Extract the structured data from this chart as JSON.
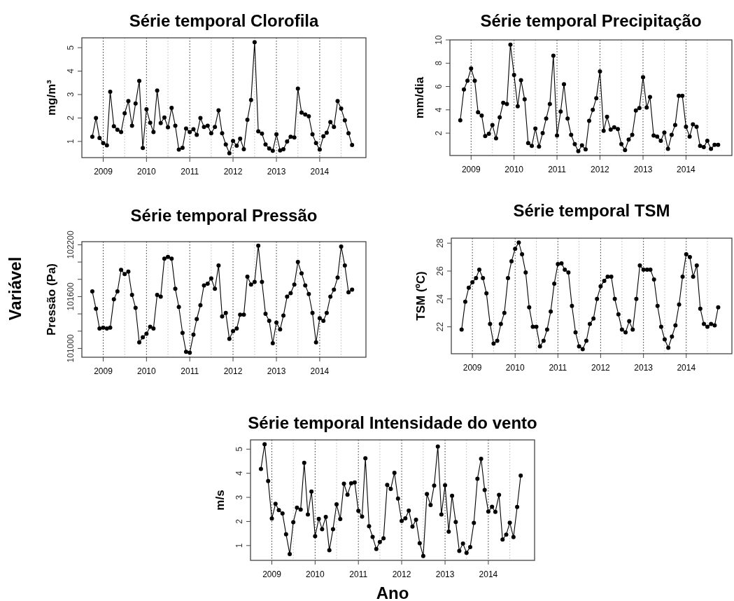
{
  "chart_data": [
    {
      "type": "line",
      "title": "Série temporal Clorofila",
      "ylabel": "mg/m³",
      "color": "#000000",
      "marker": "circle",
      "line_style": "solid",
      "x": [
        "2008-10",
        "2008-11",
        "2008-12",
        "2009-01",
        "2009-02",
        "2009-03",
        "2009-04",
        "2009-05",
        "2009-06",
        "2009-07",
        "2009-08",
        "2009-09",
        "2009-10",
        "2009-11",
        "2009-12",
        "2010-01",
        "2010-02",
        "2010-03",
        "2010-04",
        "2010-05",
        "2010-06",
        "2010-07",
        "2010-08",
        "2010-09",
        "2010-10",
        "2010-11",
        "2010-12",
        "2011-01",
        "2011-02",
        "2011-03",
        "2011-04",
        "2011-05",
        "2011-06",
        "2011-07",
        "2011-08",
        "2011-09",
        "2011-10",
        "2011-11",
        "2011-12",
        "2012-01",
        "2012-02",
        "2012-03",
        "2012-04",
        "2012-05",
        "2012-06",
        "2012-07",
        "2012-08",
        "2012-09",
        "2012-10",
        "2012-11",
        "2012-12",
        "2013-01",
        "2013-02",
        "2013-03",
        "2013-04",
        "2013-05",
        "2013-06",
        "2013-07",
        "2013-08",
        "2013-09",
        "2013-10",
        "2013-11",
        "2013-12",
        "2014-01",
        "2014-02",
        "2014-03",
        "2014-04",
        "2014-05",
        "2014-06",
        "2014-07",
        "2014-08",
        "2014-09",
        "2014-10"
      ],
      "values": [
        1.2,
        2.0,
        1.15,
        0.93,
        0.83,
        3.12,
        1.65,
        1.5,
        1.4,
        2.2,
        2.72,
        1.67,
        2.62,
        3.58,
        0.72,
        2.37,
        1.8,
        1.4,
        3.17,
        1.78,
        2.02,
        1.6,
        2.43,
        1.67,
        0.65,
        0.73,
        1.55,
        1.4,
        1.52,
        1.28,
        2.0,
        1.62,
        1.67,
        1.35,
        1.62,
        2.33,
        1.35,
        0.87,
        0.5,
        1.02,
        0.82,
        1.12,
        0.67,
        1.92,
        2.77,
        5.23,
        1.43,
        1.33,
        0.87,
        0.7,
        0.6,
        1.3,
        0.62,
        0.67,
        1.0,
        1.2,
        1.17,
        3.25,
        2.23,
        2.15,
        2.07,
        1.3,
        0.93,
        0.65,
        1.22,
        1.37,
        1.83,
        1.62,
        2.72,
        2.4,
        1.9,
        1.35,
        0.85
      ],
      "xlim": [
        "2008-07-05",
        "2015-01-26"
      ],
      "xticks": [
        {
          "value": "2009",
          "label": "2009"
        },
        {
          "value": "2010",
          "label": "2010"
        },
        {
          "value": "2011",
          "label": "2011"
        },
        {
          "value": "2012",
          "label": "2012"
        },
        {
          "value": "2013",
          "label": "2013"
        },
        {
          "value": "2014",
          "label": "2014"
        }
      ],
      "ylim": [
        0.31,
        5.42
      ],
      "yticks": [
        1,
        2,
        3,
        4,
        5
      ],
      "ref_lines": [
        {
          "axis": "x",
          "value": "2009-01",
          "color": "#333333",
          "line_style": "dotted"
        },
        {
          "axis": "x",
          "value": "2010-01",
          "color": "#333333",
          "line_style": "dotted"
        },
        {
          "axis": "x",
          "value": "2011-01",
          "color": "#333333",
          "line_style": "dotted"
        },
        {
          "axis": "x",
          "value": "2012-01",
          "color": "#333333",
          "line_style": "dotted"
        },
        {
          "axis": "x",
          "value": "2013-01",
          "color": "#333333",
          "line_style": "dotted"
        },
        {
          "axis": "x",
          "value": "2014-01",
          "color": "#333333",
          "line_style": "dotted"
        },
        {
          "axis": "x",
          "value": "2009-07",
          "color": "#bbbbbb",
          "line_style": "dotted"
        },
        {
          "axis": "x",
          "value": "2010-07",
          "color": "#bbbbbb",
          "line_style": "dotted"
        },
        {
          "axis": "x",
          "value": "2011-07",
          "color": "#bbbbbb",
          "line_style": "dotted"
        },
        {
          "axis": "x",
          "value": "2012-07",
          "color": "#bbbbbb",
          "line_style": "dotted"
        },
        {
          "axis": "x",
          "value": "2013-07",
          "color": "#bbbbbb",
          "line_style": "dotted"
        },
        {
          "axis": "x",
          "value": "2014-07",
          "color": "#bbbbbb",
          "line_style": "dotted"
        }
      ]
    },
    {
      "type": "line",
      "title": "Série temporal Precipitação",
      "ylabel": "mm/dia",
      "color": "#000000",
      "marker": "circle",
      "line_style": "solid",
      "x": [
        "2008-10",
        "2008-11",
        "2008-12",
        "2009-01",
        "2009-02",
        "2009-03",
        "2009-04",
        "2009-05",
        "2009-06",
        "2009-07",
        "2009-08",
        "2009-09",
        "2009-10",
        "2009-11",
        "2009-12",
        "2010-01",
        "2010-02",
        "2010-03",
        "2010-04",
        "2010-05",
        "2010-06",
        "2010-07",
        "2010-08",
        "2010-09",
        "2010-10",
        "2010-11",
        "2010-12",
        "2011-01",
        "2011-02",
        "2011-03",
        "2011-04",
        "2011-05",
        "2011-06",
        "2011-07",
        "2011-08",
        "2011-09",
        "2011-10",
        "2011-11",
        "2011-12",
        "2012-01",
        "2012-02",
        "2012-03",
        "2012-04",
        "2012-05",
        "2012-06",
        "2012-07",
        "2012-08",
        "2012-09",
        "2012-10",
        "2012-11",
        "2012-12",
        "2013-01",
        "2013-02",
        "2013-03",
        "2013-04",
        "2013-05",
        "2013-06",
        "2013-07",
        "2013-08",
        "2013-09",
        "2013-10",
        "2013-11",
        "2013-12",
        "2014-01",
        "2014-02",
        "2014-03",
        "2014-04",
        "2014-05",
        "2014-06",
        "2014-07",
        "2014-08",
        "2014-09",
        "2014-10"
      ],
      "values": [
        3.1,
        5.75,
        6.5,
        7.55,
        6.5,
        3.8,
        3.5,
        1.75,
        1.95,
        2.7,
        1.55,
        3.35,
        4.6,
        4.5,
        9.6,
        7.0,
        4.3,
        6.55,
        4.9,
        1.15,
        0.9,
        2.4,
        0.85,
        2.0,
        3.25,
        4.5,
        8.65,
        1.8,
        3.85,
        6.2,
        3.25,
        1.85,
        1.05,
        0.45,
        0.95,
        0.6,
        3.05,
        4.0,
        5.0,
        7.3,
        2.2,
        3.4,
        2.3,
        2.5,
        2.35,
        1.05,
        0.55,
        1.45,
        1.85,
        3.95,
        4.15,
        6.8,
        4.2,
        5.1,
        1.8,
        1.7,
        1.35,
        2.05,
        0.65,
        1.85,
        2.7,
        5.2,
        5.2,
        2.55,
        1.7,
        2.75,
        2.55,
        0.9,
        0.8,
        1.35,
        0.65,
        1.0,
        1.0
      ],
      "xlim": [
        "2008-07-05",
        "2015-01-26"
      ],
      "xticks": [
        {
          "value": "2009",
          "label": "2009"
        },
        {
          "value": "2010",
          "label": "2010"
        },
        {
          "value": "2011",
          "label": "2011"
        },
        {
          "value": "2012",
          "label": "2012"
        },
        {
          "value": "2013",
          "label": "2013"
        },
        {
          "value": "2014",
          "label": "2014"
        }
      ],
      "ylim": [
        0.08,
        10.0
      ],
      "yticks": [
        2,
        4,
        6,
        8,
        10
      ],
      "ref_lines": [
        {
          "axis": "x",
          "value": "2009-01",
          "color": "#333333",
          "line_style": "dotted"
        },
        {
          "axis": "x",
          "value": "2010-01",
          "color": "#333333",
          "line_style": "dotted"
        },
        {
          "axis": "x",
          "value": "2011-01",
          "color": "#333333",
          "line_style": "dotted"
        },
        {
          "axis": "x",
          "value": "2012-01",
          "color": "#333333",
          "line_style": "dotted"
        },
        {
          "axis": "x",
          "value": "2013-01",
          "color": "#333333",
          "line_style": "dotted"
        },
        {
          "axis": "x",
          "value": "2014-01",
          "color": "#333333",
          "line_style": "dotted"
        },
        {
          "axis": "x",
          "value": "2009-07",
          "color": "#bbbbbb",
          "line_style": "dotted"
        },
        {
          "axis": "x",
          "value": "2010-07",
          "color": "#bbbbbb",
          "line_style": "dotted"
        },
        {
          "axis": "x",
          "value": "2011-07",
          "color": "#bbbbbb",
          "line_style": "dotted"
        },
        {
          "axis": "x",
          "value": "2012-07",
          "color": "#bbbbbb",
          "line_style": "dotted"
        },
        {
          "axis": "x",
          "value": "2013-07",
          "color": "#bbbbbb",
          "line_style": "dotted"
        },
        {
          "axis": "x",
          "value": "2014-07",
          "color": "#bbbbbb",
          "line_style": "dotted"
        }
      ]
    },
    {
      "type": "line",
      "title": "Série temporal Pressão",
      "ylabel": "Pressão (Pa)",
      "color": "#000000",
      "marker": "circle",
      "line_style": "solid",
      "annotations": [
        "Variável"
      ],
      "x": [
        "2008-10",
        "2008-11",
        "2008-12",
        "2009-01",
        "2009-02",
        "2009-03",
        "2009-04",
        "2009-05",
        "2009-06",
        "2009-07",
        "2009-08",
        "2009-09",
        "2009-10",
        "2009-11",
        "2009-12",
        "2010-01",
        "2010-02",
        "2010-03",
        "2010-04",
        "2010-05",
        "2010-06",
        "2010-07",
        "2010-08",
        "2010-09",
        "2010-10",
        "2010-11",
        "2010-12",
        "2011-01",
        "2011-02",
        "2011-03",
        "2011-04",
        "2011-05",
        "2011-06",
        "2011-07",
        "2011-08",
        "2011-09",
        "2011-10",
        "2011-11",
        "2011-12",
        "2012-01",
        "2012-02",
        "2012-03",
        "2012-04",
        "2012-05",
        "2012-06",
        "2012-07",
        "2012-08",
        "2012-09",
        "2012-10",
        "2012-11",
        "2012-12",
        "2013-01",
        "2013-02",
        "2013-03",
        "2013-04",
        "2013-05",
        "2013-06",
        "2013-07",
        "2013-08",
        "2013-09",
        "2013-10",
        "2013-11",
        "2013-12",
        "2014-01",
        "2014-02",
        "2014-03",
        "2014-04",
        "2014-05",
        "2014-06",
        "2014-07",
        "2014-08",
        "2014-09",
        "2014-10"
      ],
      "values": [
        101660,
        101460,
        101230,
        101240,
        101230,
        101240,
        101570,
        101660,
        101910,
        101860,
        101890,
        101620,
        101470,
        101070,
        101130,
        101170,
        101250,
        101230,
        101620,
        101600,
        102040,
        102060,
        102040,
        101690,
        101480,
        101180,
        100960,
        100950,
        101160,
        101340,
        101500,
        101730,
        101750,
        101810,
        101690,
        101960,
        101370,
        101410,
        101110,
        101200,
        101230,
        101390,
        101390,
        101830,
        101740,
        101770,
        102190,
        101770,
        101400,
        101320,
        101060,
        101300,
        101220,
        101380,
        101600,
        101640,
        101740,
        102000,
        101870,
        101730,
        101630,
        101410,
        101070,
        101350,
        101320,
        101410,
        101600,
        101680,
        101820,
        102180,
        101960,
        101650,
        101680
      ],
      "xlim": [
        "2008-07-05",
        "2015-01-26"
      ],
      "xticks": [
        {
          "value": "2009",
          "label": "2009"
        },
        {
          "value": "2010",
          "label": "2010"
        },
        {
          "value": "2011",
          "label": "2011"
        },
        {
          "value": "2012",
          "label": "2012"
        },
        {
          "value": "2013",
          "label": "2013"
        },
        {
          "value": "2014",
          "label": "2014"
        }
      ],
      "ylim": [
        100898,
        102236
      ],
      "yticks": [
        101000,
        {
          "value": 101200,
          "label": null
        },
        {
          "value": 101400,
          "label": null
        },
        101600,
        {
          "value": 101800,
          "label": null
        },
        {
          "value": 102000,
          "label": null
        },
        102200
      ],
      "ref_lines": [
        {
          "axis": "x",
          "value": "2009-01",
          "color": "#333333",
          "line_style": "dotted"
        },
        {
          "axis": "x",
          "value": "2010-01",
          "color": "#333333",
          "line_style": "dotted"
        },
        {
          "axis": "x",
          "value": "2011-01",
          "color": "#333333",
          "line_style": "dotted"
        },
        {
          "axis": "x",
          "value": "2012-01",
          "color": "#333333",
          "line_style": "dotted"
        },
        {
          "axis": "x",
          "value": "2013-01",
          "color": "#333333",
          "line_style": "dotted"
        },
        {
          "axis": "x",
          "value": "2014-01",
          "color": "#333333",
          "line_style": "dotted"
        },
        {
          "axis": "x",
          "value": "2009-07",
          "color": "#bbbbbb",
          "line_style": "dotted"
        },
        {
          "axis": "x",
          "value": "2010-07",
          "color": "#bbbbbb",
          "line_style": "dotted"
        },
        {
          "axis": "x",
          "value": "2011-07",
          "color": "#bbbbbb",
          "line_style": "dotted"
        },
        {
          "axis": "x",
          "value": "2012-07",
          "color": "#bbbbbb",
          "line_style": "dotted"
        },
        {
          "axis": "x",
          "value": "2013-07",
          "color": "#bbbbbb",
          "line_style": "dotted"
        },
        {
          "axis": "x",
          "value": "2014-07",
          "color": "#bbbbbb",
          "line_style": "dotted"
        }
      ]
    },
    {
      "type": "line",
      "title": "Série temporal TSM",
      "ylabel": "TSM (ºC)",
      "color": "#000000",
      "marker": "circle",
      "line_style": "solid",
      "x": [
        "2008-10",
        "2008-11",
        "2008-12",
        "2009-01",
        "2009-02",
        "2009-03",
        "2009-04",
        "2009-05",
        "2009-06",
        "2009-07",
        "2009-08",
        "2009-09",
        "2009-10",
        "2009-11",
        "2009-12",
        "2010-01",
        "2010-02",
        "2010-03",
        "2010-04",
        "2010-05",
        "2010-06",
        "2010-07",
        "2010-08",
        "2010-09",
        "2010-10",
        "2010-11",
        "2010-12",
        "2011-01",
        "2011-02",
        "2011-03",
        "2011-04",
        "2011-05",
        "2011-06",
        "2011-07",
        "2011-08",
        "2011-09",
        "2011-10",
        "2011-11",
        "2011-12",
        "2012-01",
        "2012-02",
        "2012-03",
        "2012-04",
        "2012-05",
        "2012-06",
        "2012-07",
        "2012-08",
        "2012-09",
        "2012-10",
        "2012-11",
        "2012-12",
        "2013-01",
        "2013-02",
        "2013-03",
        "2013-04",
        "2013-05",
        "2013-06",
        "2013-07",
        "2013-08",
        "2013-09",
        "2013-10",
        "2013-11",
        "2013-12",
        "2014-01",
        "2014-02",
        "2014-03",
        "2014-04",
        "2014-05",
        "2014-06",
        "2014-07",
        "2014-08",
        "2014-09",
        "2014-10"
      ],
      "values": [
        21.8,
        23.8,
        24.8,
        25.2,
        25.5,
        26.1,
        25.5,
        24.4,
        22.2,
        20.8,
        21.0,
        22.2,
        23.0,
        25.5,
        26.7,
        27.6,
        28.05,
        27.2,
        25.9,
        23.4,
        22.0,
        22.0,
        20.6,
        21.0,
        21.8,
        23.1,
        25.1,
        26.5,
        26.55,
        26.1,
        25.9,
        23.5,
        21.6,
        20.6,
        20.4,
        21.0,
        22.2,
        22.6,
        24.0,
        24.9,
        25.3,
        25.6,
        25.6,
        24.0,
        22.9,
        21.8,
        21.6,
        22.4,
        21.8,
        24.0,
        26.4,
        26.1,
        26.1,
        26.1,
        25.4,
        23.5,
        22.0,
        21.1,
        20.5,
        21.3,
        22.1,
        23.6,
        25.6,
        27.2,
        27.0,
        25.6,
        26.4,
        23.3,
        22.2,
        22.0,
        22.2,
        22.1,
        23.4
      ],
      "xlim": [
        "2008-07-05",
        "2015-01-26"
      ],
      "xticks": [
        {
          "value": "2009",
          "label": "2009"
        },
        {
          "value": "2010",
          "label": "2010"
        },
        {
          "value": "2011",
          "label": "2011"
        },
        {
          "value": "2012",
          "label": "2012"
        },
        {
          "value": "2013",
          "label": "2013"
        },
        {
          "value": "2014",
          "label": "2014"
        }
      ],
      "ylim": [
        20.07,
        28.36
      ],
      "yticks": [
        22,
        24,
        26,
        28
      ],
      "ref_lines": [
        {
          "axis": "x",
          "value": "2009-01",
          "color": "#333333",
          "line_style": "dotted"
        },
        {
          "axis": "x",
          "value": "2010-01",
          "color": "#333333",
          "line_style": "dotted"
        },
        {
          "axis": "x",
          "value": "2011-01",
          "color": "#333333",
          "line_style": "dotted"
        },
        {
          "axis": "x",
          "value": "2012-01",
          "color": "#333333",
          "line_style": "dotted"
        },
        {
          "axis": "x",
          "value": "2013-01",
          "color": "#333333",
          "line_style": "dotted"
        },
        {
          "axis": "x",
          "value": "2014-01",
          "color": "#333333",
          "line_style": "dotted"
        },
        {
          "axis": "x",
          "value": "2009-07",
          "color": "#bbbbbb",
          "line_style": "dotted"
        },
        {
          "axis": "x",
          "value": "2010-07",
          "color": "#bbbbbb",
          "line_style": "dotted"
        },
        {
          "axis": "x",
          "value": "2011-07",
          "color": "#bbbbbb",
          "line_style": "dotted"
        },
        {
          "axis": "x",
          "value": "2012-07",
          "color": "#bbbbbb",
          "line_style": "dotted"
        },
        {
          "axis": "x",
          "value": "2013-07",
          "color": "#bbbbbb",
          "line_style": "dotted"
        },
        {
          "axis": "x",
          "value": "2014-07",
          "color": "#bbbbbb",
          "line_style": "dotted"
        }
      ]
    },
    {
      "type": "line",
      "title": "Série temporal Intensidade do vento",
      "ylabel": "m/s",
      "xlabel": "Ano",
      "color": "#000000",
      "marker": "circle",
      "line_style": "solid",
      "x": [
        "2008-10",
        "2008-11",
        "2008-12",
        "2009-01",
        "2009-02",
        "2009-03",
        "2009-04",
        "2009-05",
        "2009-06",
        "2009-07",
        "2009-08",
        "2009-09",
        "2009-10",
        "2009-11",
        "2009-12",
        "2010-01",
        "2010-02",
        "2010-03",
        "2010-04",
        "2010-05",
        "2010-06",
        "2010-07",
        "2010-08",
        "2010-09",
        "2010-10",
        "2010-11",
        "2010-12",
        "2011-01",
        "2011-02",
        "2011-03",
        "2011-04",
        "2011-05",
        "2011-06",
        "2011-07",
        "2011-08",
        "2011-09",
        "2011-10",
        "2011-11",
        "2011-12",
        "2012-01",
        "2012-02",
        "2012-03",
        "2012-04",
        "2012-05",
        "2012-06",
        "2012-07",
        "2012-08",
        "2012-09",
        "2012-10",
        "2012-11",
        "2012-12",
        "2013-01",
        "2013-02",
        "2013-03",
        "2013-04",
        "2013-05",
        "2013-06",
        "2013-07",
        "2013-08",
        "2013-09",
        "2013-10",
        "2013-11",
        "2013-12",
        "2014-01",
        "2014-02",
        "2014-03",
        "2014-04",
        "2014-05",
        "2014-06",
        "2014-07",
        "2014-08",
        "2014-09",
        "2014-10"
      ],
      "values": [
        4.18,
        5.2,
        3.68,
        2.12,
        2.73,
        2.47,
        2.33,
        1.47,
        0.65,
        1.97,
        2.57,
        2.49,
        4.43,
        2.29,
        3.24,
        1.39,
        2.11,
        1.68,
        2.19,
        0.81,
        1.68,
        2.71,
        2.1,
        3.57,
        3.11,
        3.58,
        3.62,
        2.44,
        2.2,
        4.62,
        1.8,
        1.36,
        0.86,
        1.15,
        1.3,
        3.52,
        3.35,
        4.02,
        2.95,
        2.02,
        2.13,
        2.45,
        1.79,
        2.07,
        1.1,
        0.57,
        3.14,
        2.68,
        3.49,
        5.11,
        2.29,
        3.5,
        1.58,
        3.07,
        1.98,
        0.78,
        1.08,
        0.7,
        0.94,
        1.94,
        3.77,
        4.6,
        3.31,
        2.41,
        2.61,
        2.4,
        3.1,
        1.25,
        1.45,
        1.95,
        1.35,
        2.6,
        3.9
      ],
      "xlim": [
        "2008-07-05",
        "2015-01-26"
      ],
      "xticks": [
        {
          "value": "2009",
          "label": "2009"
        },
        {
          "value": "2010",
          "label": "2010"
        },
        {
          "value": "2011",
          "label": "2011"
        },
        {
          "value": "2012",
          "label": "2012"
        },
        {
          "value": "2013",
          "label": "2013"
        },
        {
          "value": "2014",
          "label": "2014"
        }
      ],
      "ylim": [
        0.385,
        5.385
      ],
      "yticks": [
        1,
        2,
        3,
        4,
        5
      ],
      "ref_lines": [
        {
          "axis": "x",
          "value": "2009-01",
          "color": "#333333",
          "line_style": "dotted"
        },
        {
          "axis": "x",
          "value": "2010-01",
          "color": "#333333",
          "line_style": "dotted"
        },
        {
          "axis": "x",
          "value": "2011-01",
          "color": "#333333",
          "line_style": "dotted"
        },
        {
          "axis": "x",
          "value": "2012-01",
          "color": "#333333",
          "line_style": "dotted"
        },
        {
          "axis": "x",
          "value": "2013-01",
          "color": "#333333",
          "line_style": "dotted"
        },
        {
          "axis": "x",
          "value": "2014-01",
          "color": "#333333",
          "line_style": "dotted"
        },
        {
          "axis": "x",
          "value": "2009-07",
          "color": "#bbbbbb",
          "line_style": "dotted"
        },
        {
          "axis": "x",
          "value": "2010-07",
          "color": "#bbbbbb",
          "line_style": "dotted"
        },
        {
          "axis": "x",
          "value": "2011-07",
          "color": "#bbbbbb",
          "line_style": "dotted"
        },
        {
          "axis": "x",
          "value": "2012-07",
          "color": "#bbbbbb",
          "line_style": "dotted"
        },
        {
          "axis": "x",
          "value": "2013-07",
          "color": "#bbbbbb",
          "line_style": "dotted"
        },
        {
          "axis": "x",
          "value": "2014-07",
          "color": "#bbbbbb",
          "line_style": "dotted"
        }
      ]
    }
  ]
}
